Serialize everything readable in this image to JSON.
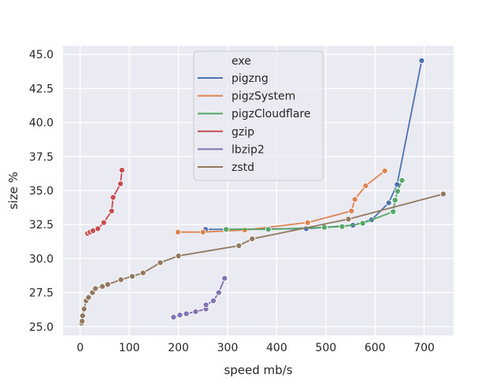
{
  "chart_data": {
    "type": "line",
    "xlabel": "speed mb/s",
    "ylabel": "size %",
    "xlim": [
      -35,
      760
    ],
    "ylim": [
      24.35,
      45.65
    ],
    "xticks": [
      0,
      100,
      200,
      300,
      400,
      500,
      600,
      700
    ],
    "yticks": [
      25.0,
      27.5,
      30.0,
      32.5,
      35.0,
      37.5,
      40.0,
      42.5,
      45.0
    ],
    "grid": true,
    "legend": {
      "title": "exe",
      "position": "top-center"
    },
    "series": [
      {
        "name": "pigzng",
        "color": "#4c72b0",
        "points": [
          [
            255,
            32.15
          ],
          [
            297,
            32.15
          ],
          [
            460,
            32.2
          ],
          [
            555,
            32.45
          ],
          [
            593,
            32.85
          ],
          [
            628,
            34.1
          ],
          [
            645,
            35.45
          ],
          [
            695,
            44.55
          ]
        ]
      },
      {
        "name": "pigzSystem",
        "color": "#dd8452",
        "points": [
          [
            199,
            31.95
          ],
          [
            250,
            31.95
          ],
          [
            335,
            32.1
          ],
          [
            463,
            32.65
          ],
          [
            552,
            33.5
          ],
          [
            559,
            34.35
          ],
          [
            581,
            35.35
          ],
          [
            620,
            36.45
          ]
        ]
      },
      {
        "name": "pigzCloudflare",
        "color": "#55a868",
        "points": [
          [
            297,
            32.15
          ],
          [
            383,
            32.15
          ],
          [
            497,
            32.3
          ],
          [
            533,
            32.35
          ],
          [
            575,
            32.6
          ],
          [
            637,
            33.45
          ],
          [
            641,
            34.3
          ],
          [
            646,
            34.95
          ],
          [
            655,
            35.75
          ]
        ]
      },
      {
        "name": "gzip",
        "color": "#c44e52",
        "points": [
          [
            15,
            31.85
          ],
          [
            20,
            31.95
          ],
          [
            26,
            32.05
          ],
          [
            36,
            32.2
          ],
          [
            48,
            32.65
          ],
          [
            64,
            33.5
          ],
          [
            67,
            34.5
          ],
          [
            82,
            35.5
          ],
          [
            85,
            36.5
          ]
        ]
      },
      {
        "name": "lbzip2",
        "color": "#8172b3",
        "points": [
          [
            190,
            25.7
          ],
          [
            203,
            25.85
          ],
          [
            216,
            25.95
          ],
          [
            235,
            26.1
          ],
          [
            256,
            26.3
          ],
          [
            256,
            26.6
          ],
          [
            271,
            26.9
          ],
          [
            282,
            27.5
          ],
          [
            294,
            28.55
          ]
        ]
      },
      {
        "name": "zstd",
        "color": "#937860",
        "points": [
          [
            3,
            25.25
          ],
          [
            4,
            25.4
          ],
          [
            5,
            25.8
          ],
          [
            8,
            26.3
          ],
          [
            12,
            26.9
          ],
          [
            17,
            27.15
          ],
          [
            25,
            27.5
          ],
          [
            31,
            27.8
          ],
          [
            45,
            27.95
          ],
          [
            56,
            28.1
          ],
          [
            83,
            28.45
          ],
          [
            106,
            28.7
          ],
          [
            128,
            28.95
          ],
          [
            163,
            29.7
          ],
          [
            200,
            30.2
          ],
          [
            323,
            30.95
          ],
          [
            350,
            31.45
          ],
          [
            546,
            32.9
          ],
          [
            739,
            34.75
          ]
        ]
      }
    ]
  }
}
